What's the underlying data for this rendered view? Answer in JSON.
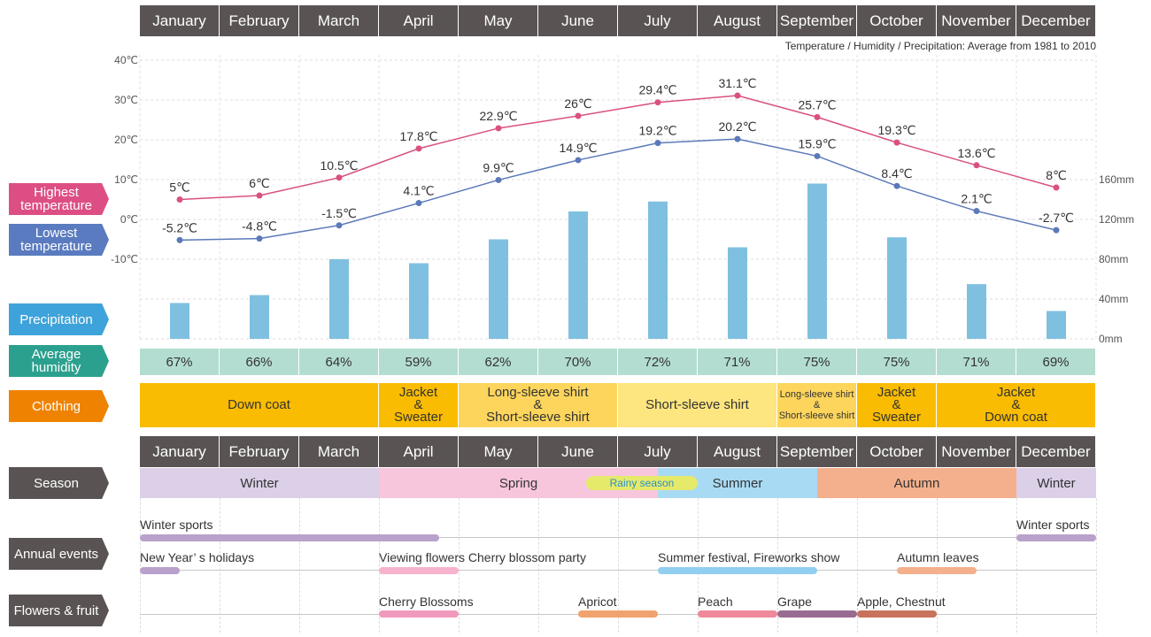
{
  "months": [
    "January",
    "February",
    "March",
    "April",
    "May",
    "June",
    "July",
    "August",
    "September",
    "October",
    "November",
    "December"
  ],
  "note": "Temperature / Humidity / Precipitation: Average from 1981 to 2010",
  "labels": {
    "high": "Highest temperature",
    "low": "Lowest temperature",
    "precip": "Precipitation",
    "humidity": "Average humidity",
    "clothing": "Clothing",
    "season": "Season",
    "events": "Annual events",
    "flowers": "Flowers & fruit"
  },
  "colors": {
    "high": "#d9517f",
    "low": "#5b79b9",
    "precip": "#7fc0e0",
    "label_high": "#dd4f84",
    "label_low": "#5a7bbf",
    "label_precip": "#3ea3da",
    "label_humidity": "#2ba08e",
    "label_clothing": "#ef8200",
    "label_dark": "#595453"
  },
  "chart_data": {
    "type": "line",
    "categories": [
      "January",
      "February",
      "March",
      "April",
      "May",
      "June",
      "July",
      "August",
      "September",
      "October",
      "November",
      "December"
    ],
    "series": [
      {
        "name": "Highest temperature",
        "values": [
          5,
          6,
          10.5,
          17.8,
          22.9,
          26,
          29.4,
          31.1,
          25.7,
          19.3,
          13.6,
          8
        ],
        "labels": [
          "5℃",
          "6℃",
          "10.5℃",
          "17.8℃",
          "22.9℃",
          "26℃",
          "29.4℃",
          "31.1℃",
          "25.7℃",
          "19.3℃",
          "13.6℃",
          "8℃"
        ]
      },
      {
        "name": "Lowest temperature",
        "values": [
          -5.2,
          -4.8,
          -1.5,
          4.1,
          9.9,
          14.9,
          19.2,
          20.2,
          15.9,
          8.4,
          2.1,
          -2.7
        ],
        "labels": [
          "-5.2℃",
          "-4.8℃",
          "-1.5℃",
          "4.1℃",
          "9.9℃",
          "14.9℃",
          "19.2℃",
          "20.2℃",
          "15.9℃",
          "8.4℃",
          "2.1℃",
          "-2.7℃"
        ]
      },
      {
        "name": "Precipitation",
        "type": "bar",
        "values": [
          36,
          44,
          80,
          76,
          100,
          128,
          138,
          92,
          156,
          102,
          55,
          28
        ]
      }
    ],
    "temp_axis": {
      "ticks": [
        "40℃",
        "30℃",
        "20℃",
        "10℃",
        "0℃",
        "-10℃"
      ],
      "values": [
        40,
        30,
        20,
        10,
        0,
        -10
      ]
    },
    "precip_axis": {
      "ticks": [
        "160mm",
        "120mm",
        "80mm",
        "40mm",
        "0mm"
      ],
      "values": [
        160,
        120,
        80,
        40,
        0
      ]
    },
    "grid": true
  },
  "humidity": [
    "67%",
    "66%",
    "64%",
    "59%",
    "62%",
    "70%",
    "72%",
    "71%",
    "75%",
    "75%",
    "71%",
    "69%"
  ],
  "clothing": [
    {
      "lines": [
        "Down coat"
      ],
      "start": 0,
      "span": 3,
      "color": "#f9bc00",
      "small": false
    },
    {
      "lines": [
        "Jacket",
        "&",
        "Sweater"
      ],
      "start": 3,
      "span": 1,
      "color": "#f9bc00",
      "small": false
    },
    {
      "lines": [
        "Long-sleeve shirt",
        "&",
        "Short-sleeve shirt"
      ],
      "start": 4,
      "span": 2,
      "color": "#fdd55c",
      "small": false
    },
    {
      "lines": [
        "Short-sleeve shirt"
      ],
      "start": 6,
      "span": 2,
      "color": "#fde57f",
      "small": false
    },
    {
      "lines": [
        "Long-sleeve shirt",
        "&",
        "Short-sleeve shirt"
      ],
      "start": 8,
      "span": 1,
      "color": "#fdd55c",
      "small": true
    },
    {
      "lines": [
        "Jacket",
        "&",
        "Sweater"
      ],
      "start": 9,
      "span": 1,
      "color": "#f9bc00",
      "small": false
    },
    {
      "lines": [
        "Jacket",
        "&",
        "Down coat"
      ],
      "start": 10,
      "span": 2,
      "color": "#f9bc00",
      "small": false
    }
  ],
  "seasons": [
    {
      "name": "Winter",
      "start": 0,
      "end": 3,
      "color": "#dcd0e8"
    },
    {
      "name": "Spring",
      "start": 3,
      "end": 6.5,
      "color": "#f7c6dc"
    },
    {
      "name": "Summer",
      "start": 6.5,
      "end": 8.5,
      "color": "#a9daf3"
    },
    {
      "name": "Autumn",
      "start": 8.5,
      "end": 11,
      "color": "#f4b08c"
    },
    {
      "name": "Winter",
      "start": 11,
      "end": 12,
      "color": "#dcd0e8"
    }
  ],
  "rainy_season": {
    "name": "Rainy season",
    "start": 5.6,
    "end": 7,
    "color": "#e6ea6b"
  },
  "events": [
    {
      "name": "Winter sports",
      "start": 0,
      "end": 3.75,
      "row": 0,
      "color": "#b9a1cb"
    },
    {
      "name": "Winter sports",
      "start": 11,
      "end": 12,
      "row": 0,
      "color": "#b9a1cb"
    },
    {
      "name": "New Year’ s holidays",
      "start": 0,
      "end": 0.5,
      "row": 1,
      "color": "#b9a1cb"
    },
    {
      "name": "Viewing flowers Cherry blossom party",
      "start": 3,
      "end": 4,
      "row": 1,
      "color": "#f7b2cd"
    },
    {
      "name": "Summer festival, Fireworks show",
      "start": 6.5,
      "end": 8.5,
      "row": 1,
      "color": "#91cff0"
    },
    {
      "name": "Autumn leaves",
      "start": 9.5,
      "end": 10.5,
      "row": 1,
      "color": "#f4b08c"
    }
  ],
  "flowers": [
    {
      "name": "Cherry Blossoms",
      "start": 3,
      "end": 4,
      "color": "#f099bc"
    },
    {
      "name": "Apricot",
      "start": 5.5,
      "end": 6.5,
      "color": "#f0a36e"
    },
    {
      "name": "Peach",
      "start": 7,
      "end": 8,
      "color": "#ee8a9b"
    },
    {
      "name": "Grape",
      "start": 8,
      "end": 9,
      "color": "#9a6b91"
    },
    {
      "name": "Apple, Chestnut",
      "start": 9,
      "end": 10,
      "color": "#c9725d"
    }
  ]
}
